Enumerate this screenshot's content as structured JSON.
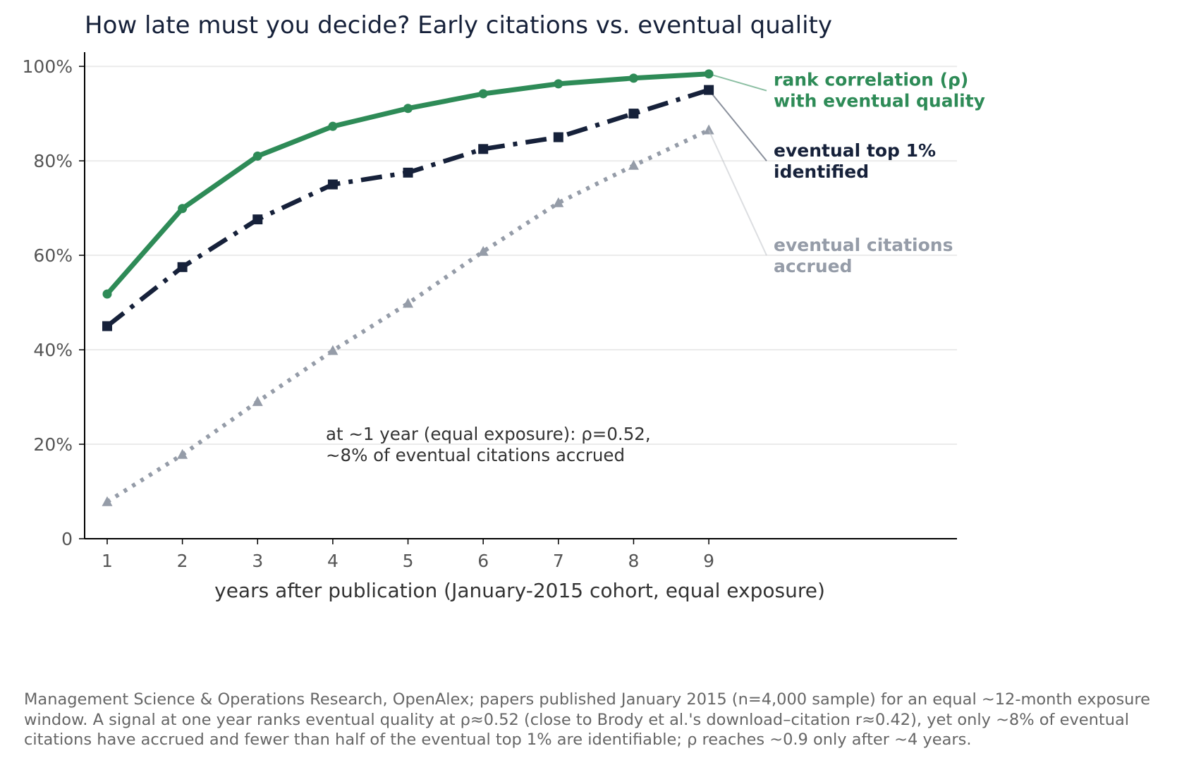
{
  "chart_data": {
    "type": "line",
    "title": "How late must you decide?  Early citations vs. eventual quality",
    "xlabel": "years after publication  (January-2015 cohort, equal exposure)",
    "ylabel": "",
    "x": [
      1,
      2,
      3,
      4,
      5,
      6,
      7,
      8,
      9
    ],
    "xlim": [
      0.7,
      12.3
    ],
    "ylim": [
      0,
      1.03
    ],
    "yticks": [
      0,
      0.2,
      0.4,
      0.6,
      0.8,
      1.0
    ],
    "ytick_labels": [
      "0",
      "20%",
      "40%",
      "60%",
      "80%",
      "100%"
    ],
    "xtick_labels": [
      "1",
      "2",
      "3",
      "4",
      "5",
      "6",
      "7",
      "8",
      "9"
    ],
    "grid": "horizontal",
    "series": [
      {
        "key": "rho",
        "name_lines": [
          "rank correlation (ρ)",
          "with eventual quality"
        ],
        "values": [
          0.518,
          0.699,
          0.81,
          0.873,
          0.911,
          0.942,
          0.963,
          0.975,
          0.984
        ],
        "color": "#2e8b57",
        "style": "solid",
        "marker": "circle"
      },
      {
        "key": "top1",
        "name_lines": [
          "eventual top 1%",
          "identified"
        ],
        "values": [
          0.45,
          0.575,
          0.676,
          0.75,
          0.775,
          0.825,
          0.85,
          0.9,
          0.95
        ],
        "color": "#16213a",
        "style": "dashdot",
        "marker": "square"
      },
      {
        "key": "cites",
        "name_lines": [
          "eventual citations",
          "accrued"
        ],
        "values": [
          0.078,
          0.178,
          0.29,
          0.398,
          0.498,
          0.608,
          0.711,
          0.79,
          0.865
        ],
        "color": "#959ca8",
        "style": "dotted",
        "marker": "triangle"
      }
    ],
    "annotation_lines": [
      "at ~1 year (equal exposure): ρ=0.52,",
      "~8% of eventual citations accrued"
    ]
  },
  "caption": "Management Science & Operations Research, OpenAlex; papers published January 2015 (n=4,000 sample) for an equal ~12-month exposure window. A signal at one year ranks eventual quality at ρ≈0.52 (close to Brody et al.'s download–citation r≈0.42), yet only ~8% of eventual citations have accrued and fewer than half of the eventual top 1% are identifiable; ρ reaches ~0.9 only after ~4 years."
}
